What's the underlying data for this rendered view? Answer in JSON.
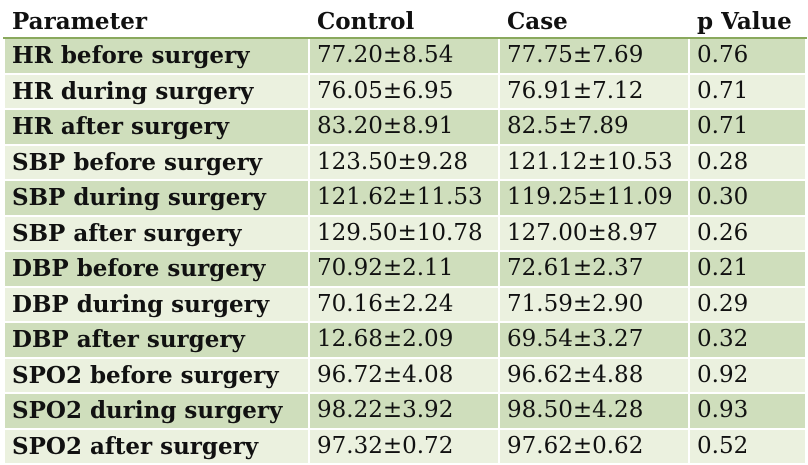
{
  "table": {
    "headers": [
      "Parameter",
      "Control",
      "Case",
      "p Value"
    ],
    "rows": [
      [
        "HR before surgery",
        "77.20±8.54",
        "77.75±7.69",
        "0.76"
      ],
      [
        "HR during surgery",
        "76.05±6.95",
        "76.91±7.12",
        "0.71"
      ],
      [
        "HR after surgery",
        "83.20±8.91",
        "82.5±7.89",
        "0.71"
      ],
      [
        "SBP before surgery",
        "123.50±9.28",
        "121.12±10.53",
        "0.28"
      ],
      [
        "SBP during surgery",
        "121.62±11.53",
        "119.25±11.09",
        "0.30"
      ],
      [
        "SBP after surgery",
        "129.50±10.78",
        "127.00±8.97",
        "0.26"
      ],
      [
        "DBP before surgery",
        "70.92±2.11",
        "72.61±2.37",
        "0.21"
      ],
      [
        "DBP during surgery",
        "70.16±2.24",
        "71.59±2.90",
        "0.29"
      ],
      [
        "DBP after surgery",
        "12.68±2.09",
        "69.54±3.27",
        "0.32"
      ],
      [
        "SPO2 before surgery",
        "96.72±4.08",
        "96.62±4.88",
        "0.92"
      ],
      [
        "SPO2 during surgery",
        "98.22±3.92",
        "98.50±4.28",
        "0.93"
      ],
      [
        "SPO2 after surgery",
        "97.32±0.72",
        "97.62±0.62",
        "0.52"
      ]
    ]
  },
  "colors": {
    "row_dark": "#cfdebc",
    "row_light": "#ebf1df",
    "header_rule": "#8aa95d"
  }
}
